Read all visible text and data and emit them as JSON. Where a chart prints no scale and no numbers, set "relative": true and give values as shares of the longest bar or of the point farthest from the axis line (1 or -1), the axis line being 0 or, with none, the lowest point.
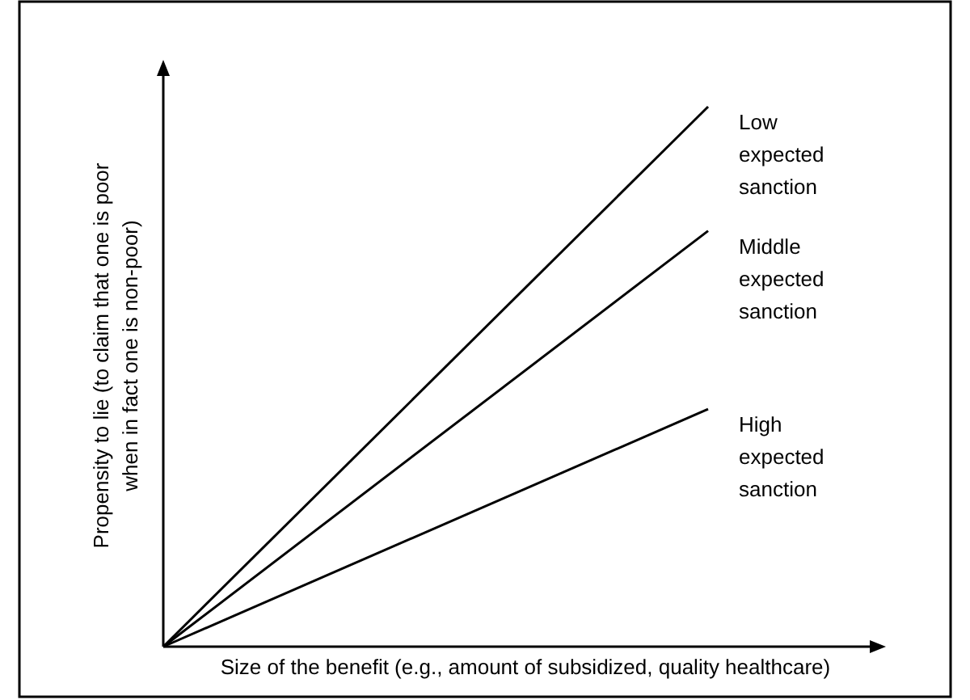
{
  "chart_data": {
    "type": "line",
    "relative": true,
    "xlabel": "Size of the benefit (e.g., amount of subsidized, quality healthcare)",
    "ylabel": "Propensity to lie (to claim that one is poor when in fact one is non-poor)",
    "categories": [
      null,
      null
    ],
    "marker": "none",
    "line_style": "solid",
    "series": [
      {
        "name": "Low expected sanction",
        "color": "#000000",
        "values": [
          0,
          1
        ]
      },
      {
        "name": "Middle expected sanction",
        "color": "#000000",
        "values": [
          0,
          0.77
        ]
      },
      {
        "name": "High expected sanction",
        "color": "#000000",
        "values": [
          0,
          0.44
        ]
      }
    ]
  }
}
